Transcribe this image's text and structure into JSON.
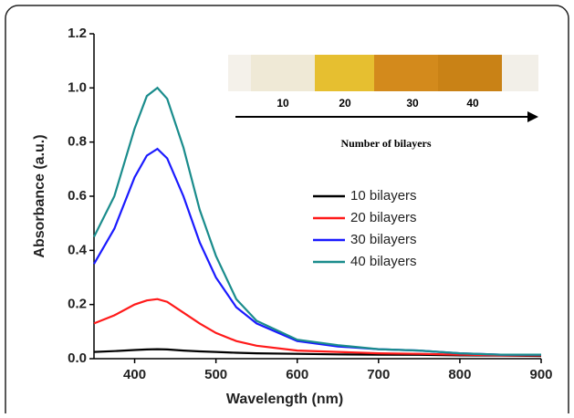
{
  "chart_data": {
    "type": "line",
    "xlabel": "Wavelength (nm)",
    "ylabel": "Absorbance (a.u.)",
    "x": [
      350,
      375,
      400,
      415,
      428,
      440,
      460,
      480,
      500,
      525,
      550,
      600,
      650,
      700,
      750,
      800,
      850,
      900
    ],
    "series": [
      {
        "name": "10 bilayers",
        "color": "#000000",
        "values": [
          0.025,
          0.028,
          0.032,
          0.034,
          0.035,
          0.034,
          0.03,
          0.027,
          0.025,
          0.022,
          0.02,
          0.018,
          0.016,
          0.015,
          0.014,
          0.012,
          0.011,
          0.01
        ]
      },
      {
        "name": "20 bilayers",
        "color": "#ff1a1a",
        "values": [
          0.13,
          0.16,
          0.2,
          0.215,
          0.22,
          0.21,
          0.17,
          0.13,
          0.095,
          0.065,
          0.048,
          0.03,
          0.025,
          0.02,
          0.018,
          0.015,
          0.012,
          0.012
        ]
      },
      {
        "name": "30 bilayers",
        "color": "#1a1aff",
        "values": [
          0.35,
          0.48,
          0.67,
          0.75,
          0.775,
          0.74,
          0.6,
          0.43,
          0.3,
          0.19,
          0.13,
          0.065,
          0.045,
          0.035,
          0.03,
          0.02,
          0.015,
          0.015
        ]
      },
      {
        "name": "40 bilayers",
        "color": "#1a8c8c",
        "values": [
          0.45,
          0.6,
          0.85,
          0.97,
          1.0,
          0.96,
          0.78,
          0.55,
          0.38,
          0.22,
          0.14,
          0.07,
          0.05,
          0.035,
          0.03,
          0.02,
          0.015,
          0.015
        ]
      }
    ],
    "xlim": [
      350,
      900
    ],
    "ylim": [
      0,
      1.2
    ],
    "xticks": [
      400,
      500,
      600,
      700,
      800,
      900
    ],
    "yticks": [
      {
        "value": 0,
        "label": "0.0"
      },
      0.2,
      0.4,
      0.6,
      0.8,
      {
        "value": 1,
        "label": "1.0"
      },
      1.2
    ],
    "annotations": [
      "10",
      "20",
      "30",
      "40",
      "Number of bilayers"
    ]
  }
}
